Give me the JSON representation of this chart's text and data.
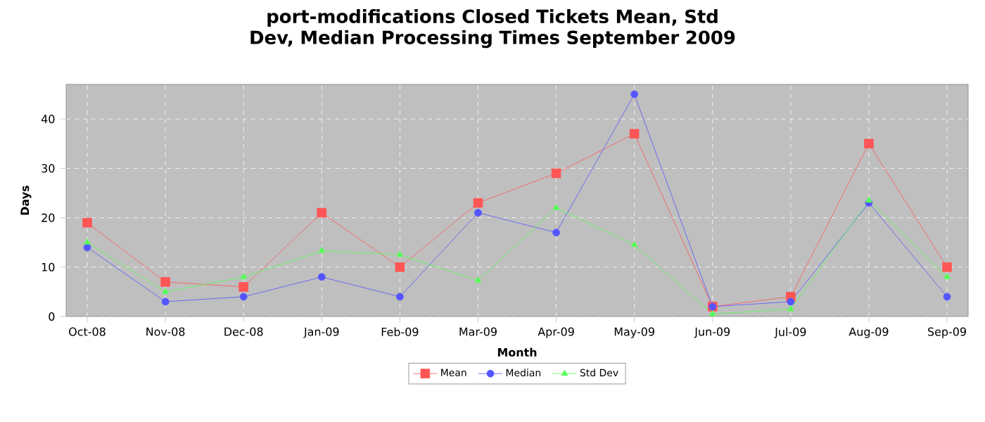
{
  "chart_data": {
    "type": "line",
    "title": "port-modifications Closed Tickets Mean, Std Dev, Median Processing Times September 2009",
    "xlabel": "Month",
    "ylabel": "Days",
    "categories": [
      "Oct-08",
      "Nov-08",
      "Dec-08",
      "Jan-09",
      "Feb-09",
      "Mar-09",
      "Apr-09",
      "May-09",
      "Jun-09",
      "Jul-09",
      "Aug-09",
      "Sep-09"
    ],
    "series": [
      {
        "name": "Mean",
        "color": "#ff5555",
        "marker": "square",
        "values": [
          19,
          7,
          6,
          21,
          10,
          23,
          29,
          37,
          2,
          4,
          35,
          10
        ]
      },
      {
        "name": "Median",
        "color": "#5555ff",
        "marker": "circle",
        "values": [
          14,
          3,
          4,
          8,
          4,
          21,
          17,
          45,
          2,
          3,
          23,
          4
        ]
      },
      {
        "name": "Std Dev",
        "color": "#55ff55",
        "marker": "triangle",
        "values": [
          15,
          5,
          8,
          13.3,
          12.5,
          7.3,
          22,
          14.5,
          0.5,
          1.5,
          23.5,
          8
        ]
      }
    ],
    "ylim": [
      0,
      47
    ],
    "yticks": [
      0,
      10,
      20,
      30,
      40
    ],
    "grid": true,
    "legend": "bottom"
  }
}
